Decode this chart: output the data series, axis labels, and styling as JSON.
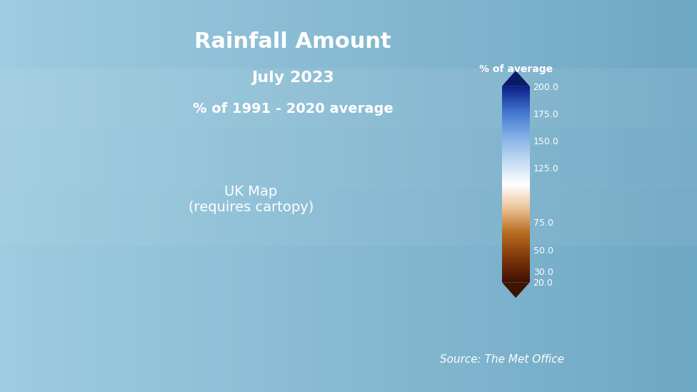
{
  "title": "Rainfall Amount",
  "subtitle1": "July 2023",
  "subtitle2": "% of 1991 - 2020 average",
  "source": "Source: The Met Office",
  "colorbar_label": "% of average",
  "colorbar_ticks": [
    20.0,
    30.0,
    50.0,
    75.0,
    125.0,
    150.0,
    175.0,
    200.0
  ],
  "bg_color_top": "#7aaecc",
  "bg_color_bottom": "#8bbdd6",
  "title_color": "#ffffff",
  "source_color": "#ffffff",
  "figsize": [
    9.76,
    5.49
  ],
  "dpi": 100
}
